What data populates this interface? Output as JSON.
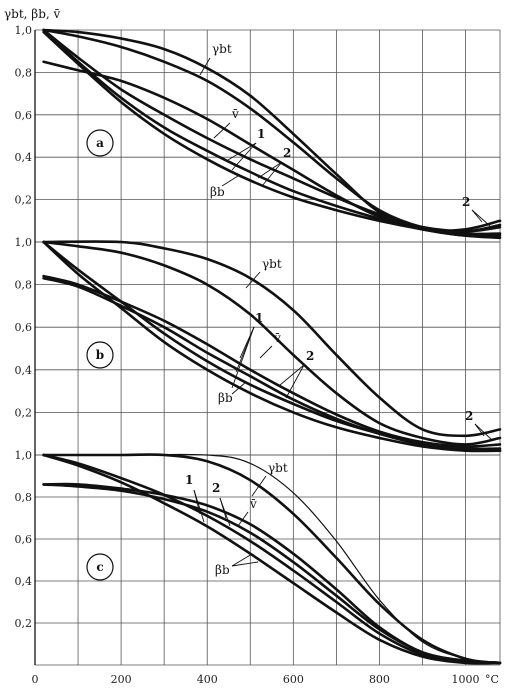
{
  "ylabel": "γbt, βb, v̄",
  "x_unit": "°C",
  "x_ticks": [
    "0",
    "200",
    "400",
    "600",
    "800",
    "1000"
  ],
  "y_ticks": [
    "0,2",
    "0,4",
    "0,6",
    "0,8",
    "1,0"
  ],
  "chart_data": [
    {
      "type": "line",
      "panel": "a",
      "xlim": [
        0,
        1080
      ],
      "ylim": [
        0,
        1.0
      ],
      "grid": true,
      "series": [
        {
          "name": "γbt",
          "x": [
            20,
            100,
            200,
            300,
            400,
            500,
            600,
            700,
            800,
            900,
            1000,
            1080
          ],
          "y": [
            1.0,
            0.99,
            0.96,
            0.91,
            0.82,
            0.69,
            0.51,
            0.32,
            0.14,
            0.06,
            0.06,
            0.1
          ]
        },
        {
          "name": "γbt",
          "x": [
            20,
            100,
            200,
            300,
            400,
            500,
            600,
            700,
            800,
            900,
            1000,
            1080
          ],
          "y": [
            1.0,
            0.97,
            0.92,
            0.85,
            0.76,
            0.63,
            0.47,
            0.3,
            0.15,
            0.07,
            0.05,
            0.08
          ]
        },
        {
          "name": "v̄",
          "x": [
            20,
            100,
            200,
            300,
            400,
            500,
            600,
            700,
            800,
            900,
            1000,
            1080
          ],
          "y": [
            0.85,
            0.81,
            0.76,
            0.68,
            0.58,
            0.46,
            0.34,
            0.22,
            0.12,
            0.07,
            0.05,
            0.07
          ]
        },
        {
          "name": "v̄",
          "x": [
            20,
            100,
            200,
            300,
            400,
            500,
            600,
            700,
            800,
            900,
            1000,
            1080
          ],
          "y": [
            1.0,
            0.87,
            0.72,
            0.6,
            0.49,
            0.39,
            0.3,
            0.21,
            0.13,
            0.07,
            0.04,
            0.04
          ]
        },
        {
          "name": "βb",
          "x": [
            20,
            100,
            200,
            300,
            400,
            500,
            600,
            700,
            800,
            900,
            1000,
            1080
          ],
          "y": [
            1.0,
            0.85,
            0.68,
            0.54,
            0.43,
            0.33,
            0.24,
            0.17,
            0.11,
            0.06,
            0.03,
            0.03
          ]
        },
        {
          "name": "βb",
          "x": [
            20,
            100,
            200,
            300,
            400,
            500,
            600,
            700,
            800,
            900,
            1000,
            1080
          ],
          "y": [
            0.99,
            0.84,
            0.66,
            0.51,
            0.39,
            0.29,
            0.21,
            0.15,
            0.1,
            0.06,
            0.03,
            0.02
          ]
        }
      ],
      "annotations": [
        "a",
        "1",
        "2",
        "2"
      ]
    },
    {
      "type": "line",
      "panel": "b",
      "xlim": [
        0,
        1080
      ],
      "ylim": [
        0,
        1.0
      ],
      "grid": true,
      "series": [
        {
          "name": "γbt",
          "x": [
            20,
            200,
            300,
            400,
            500,
            600,
            700,
            800,
            900,
            1000,
            1080
          ],
          "y": [
            1.0,
            1.0,
            0.97,
            0.92,
            0.83,
            0.68,
            0.47,
            0.27,
            0.12,
            0.09,
            0.12
          ]
        },
        {
          "name": "γbt",
          "x": [
            20,
            100,
            200,
            300,
            400,
            500,
            600,
            700,
            800,
            900,
            1000,
            1080
          ],
          "y": [
            1.0,
            0.98,
            0.95,
            0.89,
            0.8,
            0.66,
            0.47,
            0.29,
            0.15,
            0.08,
            0.05,
            0.08
          ]
        },
        {
          "name": "v̄",
          "x": [
            20,
            100,
            200,
            300,
            400,
            500,
            600,
            700,
            800,
            900,
            1000,
            1080
          ],
          "y": [
            0.84,
            0.8,
            0.72,
            0.63,
            0.52,
            0.4,
            0.29,
            0.19,
            0.11,
            0.06,
            0.04,
            0.05
          ]
        },
        {
          "name": "v̄",
          "x": [
            20,
            100,
            200,
            300,
            400,
            500,
            600,
            700,
            800,
            900,
            1000,
            1080
          ],
          "y": [
            0.83,
            0.79,
            0.7,
            0.6,
            0.48,
            0.37,
            0.26,
            0.17,
            0.1,
            0.05,
            0.03,
            0.03
          ]
        },
        {
          "name": "βb",
          "x": [
            20,
            100,
            200,
            300,
            400,
            500,
            600,
            700,
            800,
            900,
            1000,
            1080
          ],
          "y": [
            1.0,
            0.87,
            0.72,
            0.57,
            0.44,
            0.33,
            0.24,
            0.16,
            0.1,
            0.05,
            0.03,
            0.02
          ]
        },
        {
          "name": "βb",
          "x": [
            20,
            100,
            200,
            300,
            400,
            500,
            600,
            700,
            800,
            900,
            1000,
            1080
          ],
          "y": [
            1.0,
            0.85,
            0.69,
            0.53,
            0.4,
            0.29,
            0.2,
            0.13,
            0.08,
            0.04,
            0.02,
            0.02
          ]
        }
      ],
      "annotations": [
        "b",
        "1",
        "2",
        "2"
      ]
    },
    {
      "type": "line",
      "panel": "c",
      "xlim": [
        0,
        1080
      ],
      "ylim": [
        0,
        1.0
      ],
      "grid": true,
      "series": [
        {
          "name": "γbt",
          "x": [
            20,
            200,
            400,
            500,
            600,
            700,
            800,
            900,
            1000,
            1080
          ],
          "y": [
            1.0,
            1.0,
            1.0,
            0.96,
            0.82,
            0.59,
            0.31,
            0.11,
            0.03,
            0.01
          ]
        },
        {
          "name": "γbt",
          "x": [
            20,
            200,
            300,
            400,
            500,
            600,
            700,
            800,
            900,
            1000,
            1080
          ],
          "y": [
            1.0,
            1.0,
            1.0,
            0.97,
            0.88,
            0.72,
            0.51,
            0.29,
            0.12,
            0.03,
            0.01
          ]
        },
        {
          "name": "v̄",
          "x": [
            20,
            100,
            200,
            300,
            400,
            500,
            600,
            700,
            800,
            900,
            1000,
            1080
          ],
          "y": [
            0.86,
            0.86,
            0.84,
            0.81,
            0.76,
            0.67,
            0.53,
            0.36,
            0.18,
            0.06,
            0.02,
            0.01
          ]
        },
        {
          "name": "v̄",
          "x": [
            20,
            100,
            200,
            300,
            400,
            500,
            600,
            700,
            800,
            900,
            1000,
            1080
          ],
          "y": [
            0.86,
            0.85,
            0.83,
            0.79,
            0.73,
            0.63,
            0.49,
            0.33,
            0.17,
            0.06,
            0.02,
            0.01
          ]
        },
        {
          "name": "βb",
          "x": [
            20,
            100,
            200,
            300,
            400,
            500,
            600,
            700,
            800,
            900,
            1000,
            1080
          ],
          "y": [
            1.0,
            0.96,
            0.89,
            0.81,
            0.71,
            0.59,
            0.45,
            0.3,
            0.15,
            0.05,
            0.02,
            0.01
          ]
        },
        {
          "name": "βb",
          "x": [
            20,
            100,
            200,
            300,
            400,
            500,
            600,
            700,
            800,
            900,
            1000,
            1080
          ],
          "y": [
            1.0,
            0.95,
            0.87,
            0.77,
            0.66,
            0.53,
            0.39,
            0.25,
            0.12,
            0.04,
            0.01,
            0.01
          ]
        }
      ],
      "annotations": [
        "c",
        "1",
        "2"
      ]
    }
  ]
}
